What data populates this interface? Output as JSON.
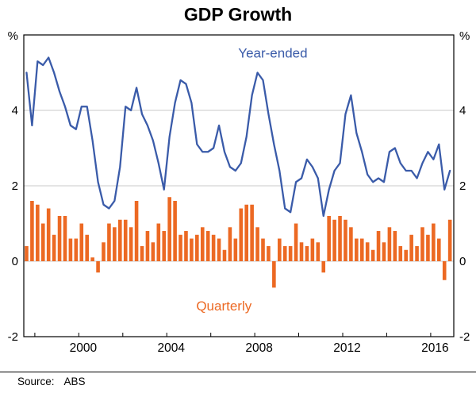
{
  "title": "GDP Growth",
  "source": {
    "label": "Source:",
    "value": "ABS"
  },
  "chart_data": {
    "type": "combo",
    "title": "GDP Growth",
    "unit_label": "%",
    "frequency": "quarterly",
    "start": "1997Q3",
    "end": "2016Q4",
    "x_range": [
      1997.5,
      2017.05
    ],
    "x_step": 0.25,
    "ylim": [
      -2,
      6
    ],
    "yticks": [
      4,
      2,
      0,
      -2
    ],
    "grid_values": [
      0,
      2,
      4
    ],
    "x_minor_ticks": [
      1998,
      2000,
      2002,
      2004,
      2006,
      2008,
      2010,
      2012,
      2014,
      2016
    ],
    "x_tick_years": [
      2000,
      2004,
      2008,
      2012,
      2016
    ],
    "x_tick_labels": [
      "2000",
      "2004",
      "2008",
      "2012",
      "2016"
    ],
    "colors": {
      "grid": "#c9c9c9",
      "frame": "#000000",
      "line": "#3a5ba9",
      "bar": "#ec6923"
    },
    "series": [
      {
        "name": "Year-ended",
        "kind": "line",
        "color": "#3a5ba9",
        "values": [
          5.0,
          3.6,
          5.3,
          5.2,
          5.4,
          5.0,
          4.5,
          4.1,
          3.6,
          3.5,
          4.1,
          4.1,
          3.2,
          2.1,
          1.5,
          1.4,
          1.6,
          2.5,
          4.1,
          4.0,
          4.6,
          3.9,
          3.6,
          3.2,
          2.6,
          1.9,
          3.3,
          4.2,
          4.8,
          4.7,
          4.2,
          3.1,
          2.9,
          2.9,
          3.0,
          3.6,
          2.9,
          2.5,
          2.4,
          2.6,
          3.3,
          4.4,
          5.0,
          4.8,
          3.9,
          3.1,
          2.4,
          1.4,
          1.3,
          2.1,
          2.2,
          2.7,
          2.5,
          2.2,
          1.2,
          1.9,
          2.4,
          2.6,
          3.9,
          4.4,
          3.4,
          2.9,
          2.3,
          2.1,
          2.2,
          2.1,
          2.9,
          3.0,
          2.6,
          2.4,
          2.4,
          2.2,
          2.6,
          2.9,
          2.7,
          3.1,
          1.9,
          2.4
        ]
      },
      {
        "name": "Quarterly",
        "kind": "bar",
        "color": "#ec6923",
        "values": [
          0.4,
          1.6,
          1.5,
          1.0,
          1.4,
          0.7,
          1.2,
          1.2,
          0.6,
          0.6,
          1.0,
          0.7,
          0.1,
          -0.3,
          0.5,
          1.0,
          0.9,
          1.1,
          1.1,
          0.9,
          1.6,
          0.4,
          0.8,
          0.5,
          1.0,
          0.8,
          1.7,
          1.6,
          0.7,
          0.8,
          0.6,
          0.7,
          0.9,
          0.8,
          0.7,
          0.6,
          0.3,
          0.9,
          0.6,
          1.4,
          1.5,
          1.5,
          0.9,
          0.6,
          0.4,
          -0.7,
          0.6,
          0.4,
          0.4,
          1.0,
          0.5,
          0.4,
          0.6,
          0.5,
          -0.3,
          1.2,
          1.1,
          1.2,
          1.1,
          0.9,
          0.6,
          0.6,
          0.5,
          0.3,
          0.8,
          0.5,
          0.9,
          0.8,
          0.4,
          0.3,
          0.7,
          0.4,
          0.9,
          0.7,
          1.0,
          0.6,
          -0.5,
          1.1
        ]
      }
    ],
    "legend": [
      {
        "label": "Year-ended",
        "color": "#3a5ba9",
        "year": 2007.25,
        "value": 5.4,
        "anchor": "start"
      },
      {
        "label": "Quarterly",
        "color": "#ec6923",
        "year": 2006.6,
        "value": -1.3,
        "anchor": "middle"
      }
    ]
  }
}
